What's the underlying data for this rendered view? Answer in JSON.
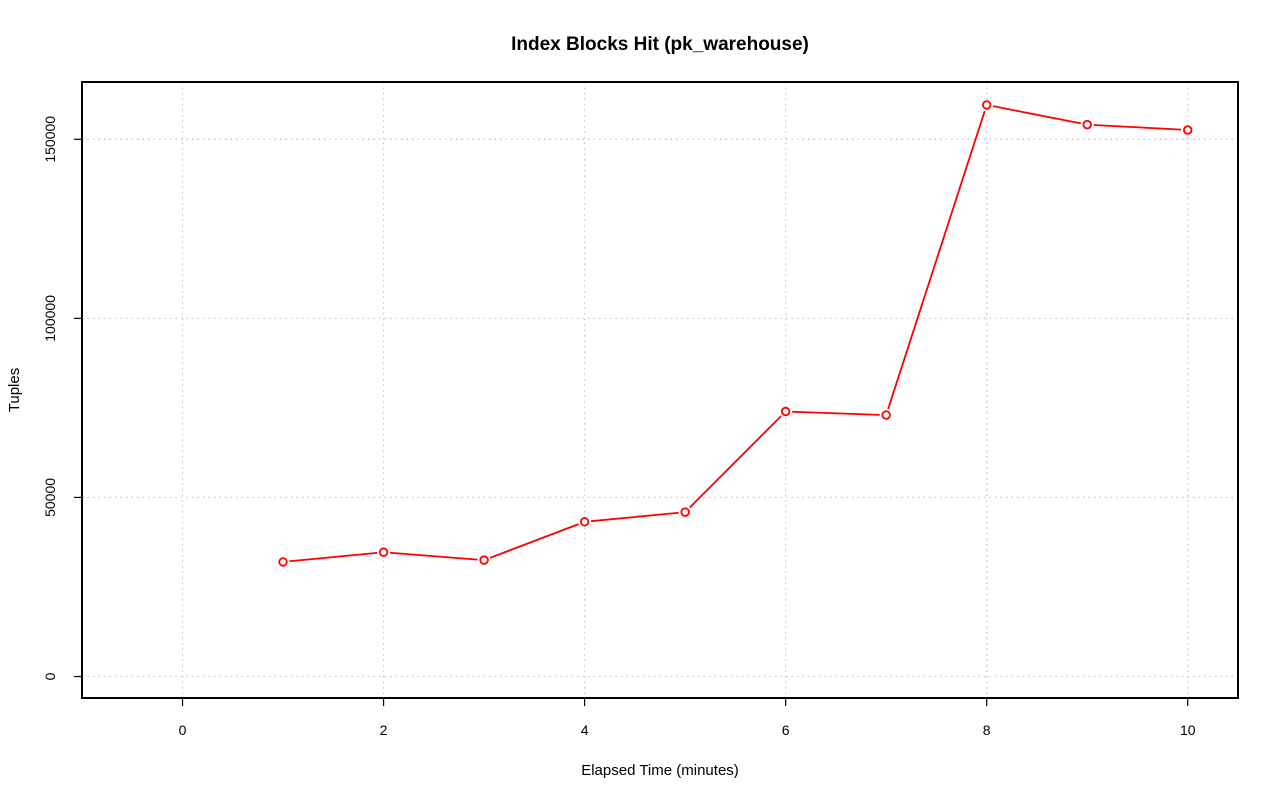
{
  "chart_data": {
    "type": "line",
    "title": "Index Blocks Hit (pk_warehouse)",
    "xlabel": "Elapsed Time (minutes)",
    "ylabel": "Tuples",
    "xlim": [
      -1,
      10.5
    ],
    "ylim": [
      -6000,
      166000
    ],
    "x_ticks": [
      0,
      2,
      4,
      6,
      8,
      10
    ],
    "y_ticks": [
      0,
      50000,
      100000,
      150000
    ],
    "grid": true,
    "series": [
      {
        "color": "#ff0000",
        "x": [
          1,
          2,
          3,
          4,
          5,
          6,
          7,
          8,
          9,
          10
        ],
        "y": [
          32000,
          34700,
          32500,
          43200,
          45900,
          74000,
          73000,
          159600,
          154100,
          152600
        ]
      }
    ]
  }
}
